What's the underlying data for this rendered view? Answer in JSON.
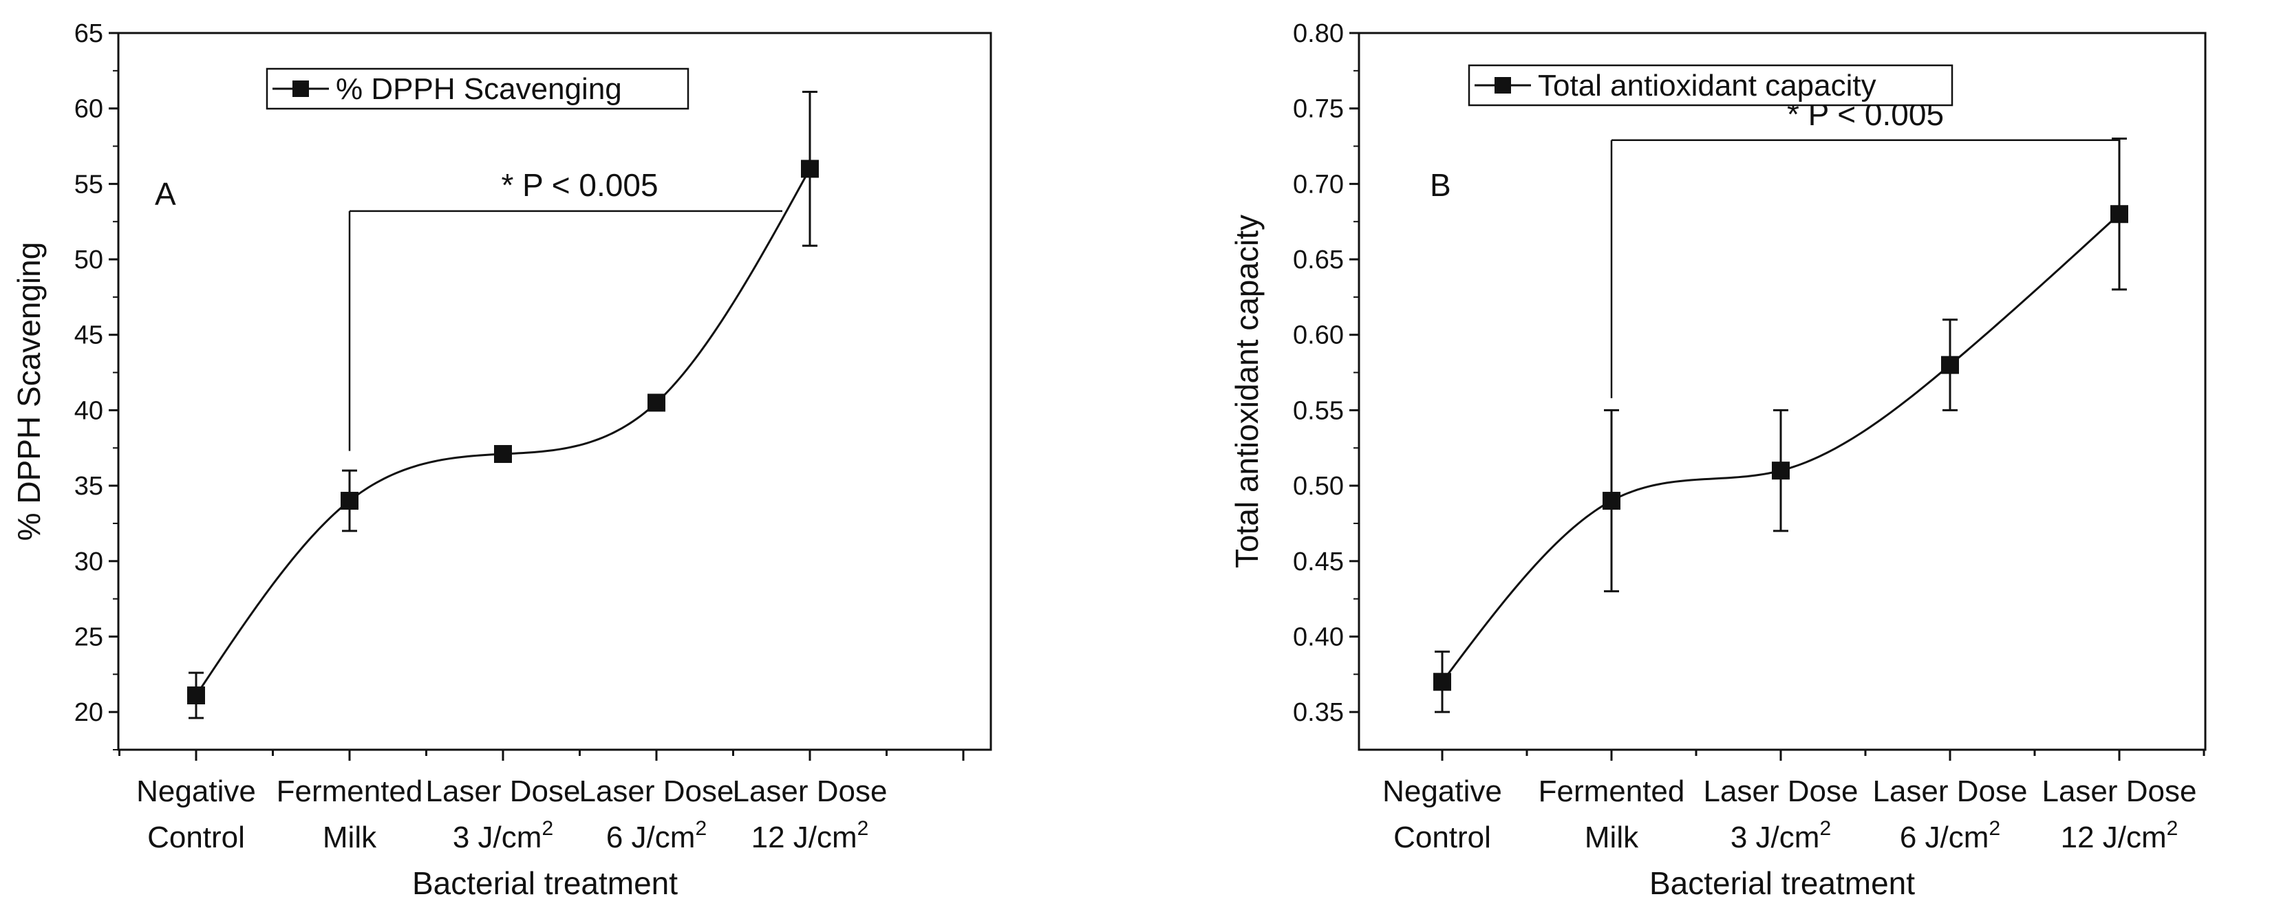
{
  "chart_data": [
    {
      "type": "line",
      "panel_label": "A",
      "categories": [
        {
          "line1": "Negative",
          "line2": "Control",
          "sup": ""
        },
        {
          "line1": "Fermented",
          "line2": "Milk",
          "sup": ""
        },
        {
          "line1": "Laser Dose",
          "line2": "3 J/cm",
          "sup": "2"
        },
        {
          "line1": "Laser Dose",
          "line2": "6 J/cm",
          "sup": "2"
        },
        {
          "line1": "Laser Dose",
          "line2": "12 J/cm",
          "sup": "2"
        }
      ],
      "series": [
        {
          "name": "% DPPH Scavenging",
          "values": [
            21.1,
            34.0,
            37.1,
            40.5,
            56.0
          ],
          "errors": [
            1.5,
            2.0,
            0.0,
            0.0,
            5.1
          ]
        }
      ],
      "ylabel": "% DPPH Scavenging",
      "xlabel": "Bacterial treatment",
      "ylim": [
        17.5,
        65
      ],
      "yticks": [
        "20",
        "25",
        "30",
        "35",
        "40",
        "45",
        "50",
        "55",
        "60",
        "65"
      ],
      "annotation": {
        "text": "* P < 0.005",
        "from_category": 1,
        "to_category": 4,
        "level": 53.2,
        "drop_to": 37.3
      },
      "legend_position": "top-center"
    },
    {
      "type": "line",
      "panel_label": "B",
      "categories": [
        {
          "line1": "Negative",
          "line2": "Control",
          "sup": ""
        },
        {
          "line1": "Fermented",
          "line2": "Milk",
          "sup": ""
        },
        {
          "line1": "Laser Dose",
          "line2": "3 J/cm",
          "sup": "2"
        },
        {
          "line1": "Laser Dose",
          "line2": "6 J/cm",
          "sup": "2"
        },
        {
          "line1": "Laser Dose",
          "line2": "12 J/cm",
          "sup": "2"
        }
      ],
      "series": [
        {
          "name": "Total antioxidant capacity",
          "values": [
            0.37,
            0.49,
            0.51,
            0.58,
            0.68
          ],
          "errors": [
            0.02,
            0.06,
            0.04,
            0.03,
            0.05
          ]
        }
      ],
      "ylabel": "Total antioxidant capacity",
      "xlabel": "Bacterial treatment",
      "ylim": [
        0.325,
        0.8
      ],
      "yticks": [
        "0.35",
        "0.40",
        "0.45",
        "0.50",
        "0.55",
        "0.60",
        "0.65",
        "0.70",
        "0.75",
        "0.80"
      ],
      "annotation": {
        "text": "* P < 0.005",
        "from_category": 1,
        "to_category": 4,
        "level": 0.729,
        "drop_to": 0.558
      },
      "legend_position": "top-left"
    }
  ]
}
